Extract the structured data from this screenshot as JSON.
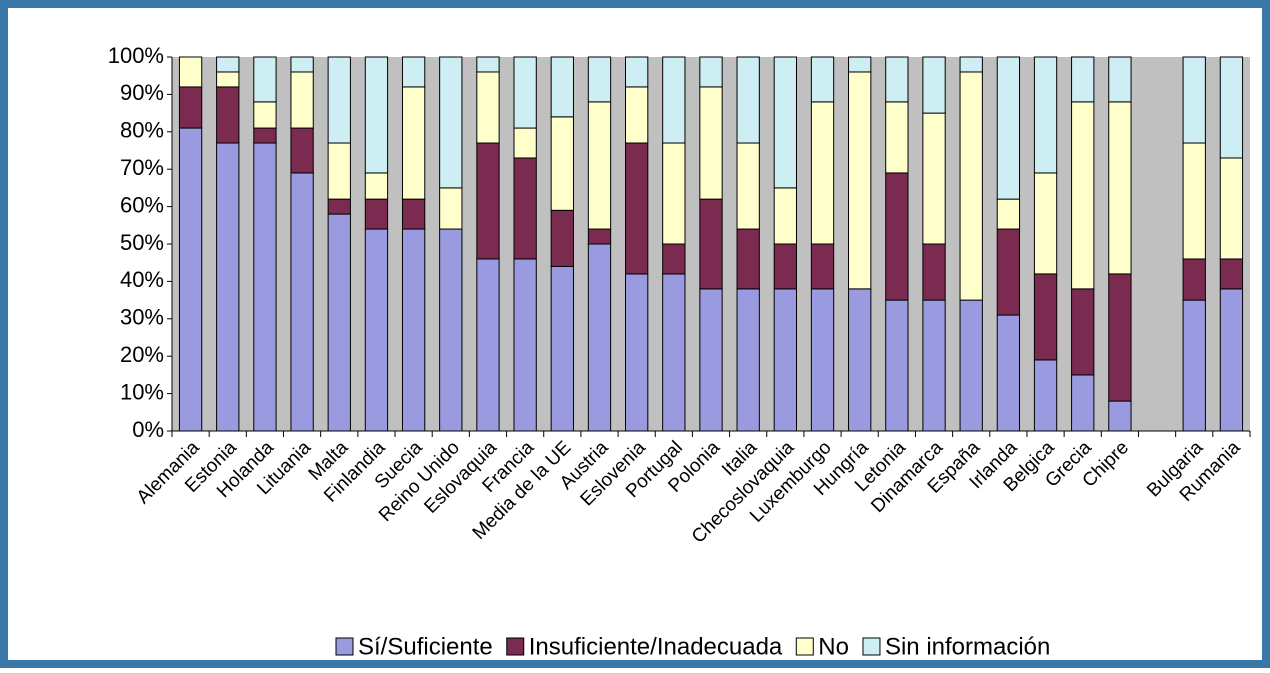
{
  "chart_data": {
    "type": "stacked_bar",
    "categories": [
      "Alemania",
      "Estonia",
      "Holanda",
      "Lituania",
      "Malta",
      "Finlandia",
      "Suecia",
      "Reino Unido",
      "Eslovaquia",
      "Francia",
      "Media de la UE",
      "Austria",
      "Eslovenia",
      "Portugal",
      "Polonia",
      "Italia",
      "Checoslovaquia",
      "Luxemburgo",
      "Hungría",
      "Letonia",
      "Dinamarca",
      "España",
      "Irlanda",
      "Belgica",
      "Grecia",
      "Chipre",
      null,
      "Bulgaria",
      "Rumania"
    ],
    "series": [
      {
        "name": "Sí/Suficiente",
        "color": "#9a9ae0",
        "values": [
          81,
          77,
          77,
          69,
          58,
          54,
          54,
          54,
          46,
          46,
          44,
          50,
          42,
          42,
          38,
          38,
          38,
          38,
          38,
          35,
          35,
          35,
          31,
          19,
          15,
          8,
          null,
          35,
          38
        ]
      },
      {
        "name": "Insuficiente/Inadecuada",
        "color": "#7b2a50",
        "values": [
          11,
          15,
          4,
          12,
          4,
          8,
          8,
          0,
          31,
          27,
          15,
          4,
          35,
          8,
          24,
          16,
          12,
          12,
          0,
          34,
          15,
          0,
          23,
          23,
          23,
          34,
          null,
          11,
          8
        ]
      },
      {
        "name": "No",
        "color": "#ffffcc",
        "values": [
          8,
          4,
          7,
          15,
          15,
          7,
          30,
          11,
          19,
          8,
          25,
          34,
          15,
          27,
          30,
          23,
          15,
          38,
          58,
          19,
          35,
          61,
          8,
          27,
          50,
          46,
          null,
          31,
          27
        ]
      },
      {
        "name": "Sin información",
        "color": "#cdeef2",
        "values": [
          0,
          4,
          12,
          4,
          23,
          31,
          8,
          35,
          4,
          19,
          16,
          12,
          8,
          23,
          8,
          23,
          35,
          12,
          4,
          12,
          15,
          4,
          38,
          31,
          12,
          12,
          null,
          23,
          27
        ]
      }
    ],
    "ylim": [
      0,
      100
    ],
    "yticks": [
      {
        "value": 0,
        "label": "0%"
      },
      {
        "value": 10,
        "label": "10%"
      },
      {
        "value": 20,
        "label": "20%"
      },
      {
        "value": 30,
        "label": "30%"
      },
      {
        "value": 40,
        "label": "40%"
      },
      {
        "value": 50,
        "label": "50%"
      },
      {
        "value": 60,
        "label": "60%"
      },
      {
        "value": 70,
        "label": "70%"
      },
      {
        "value": 80,
        "label": "80%"
      },
      {
        "value": 90,
        "label": "90%"
      },
      {
        "value": 100,
        "label": "100%"
      }
    ],
    "grid": false,
    "legend": "bottom"
  }
}
